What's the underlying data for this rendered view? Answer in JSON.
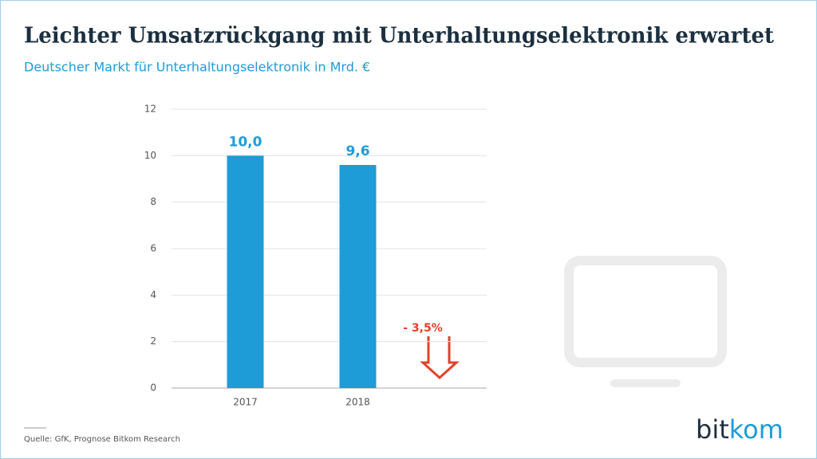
{
  "chart_data": {
    "type": "bar",
    "title": "Leichter Umsatzrückgang mit Unterhaltungselektronik erwartet",
    "subtitle": "Deutscher Markt für Unterhaltungselektronik in Mrd. €",
    "categories": [
      "2017",
      "2018"
    ],
    "values": [
      10.0,
      9.6
    ],
    "value_labels": [
      "10,0",
      "9,6"
    ],
    "color": "#1e9cd7",
    "ylim": [
      0,
      12
    ],
    "yticks": [
      0,
      2,
      4,
      6,
      8,
      10,
      12
    ],
    "grid": true,
    "annotation": "- 3,5%",
    "source": "Quelle: GfK, Prognose Bitkom Research",
    "logo": [
      "bit",
      "kom"
    ]
  }
}
